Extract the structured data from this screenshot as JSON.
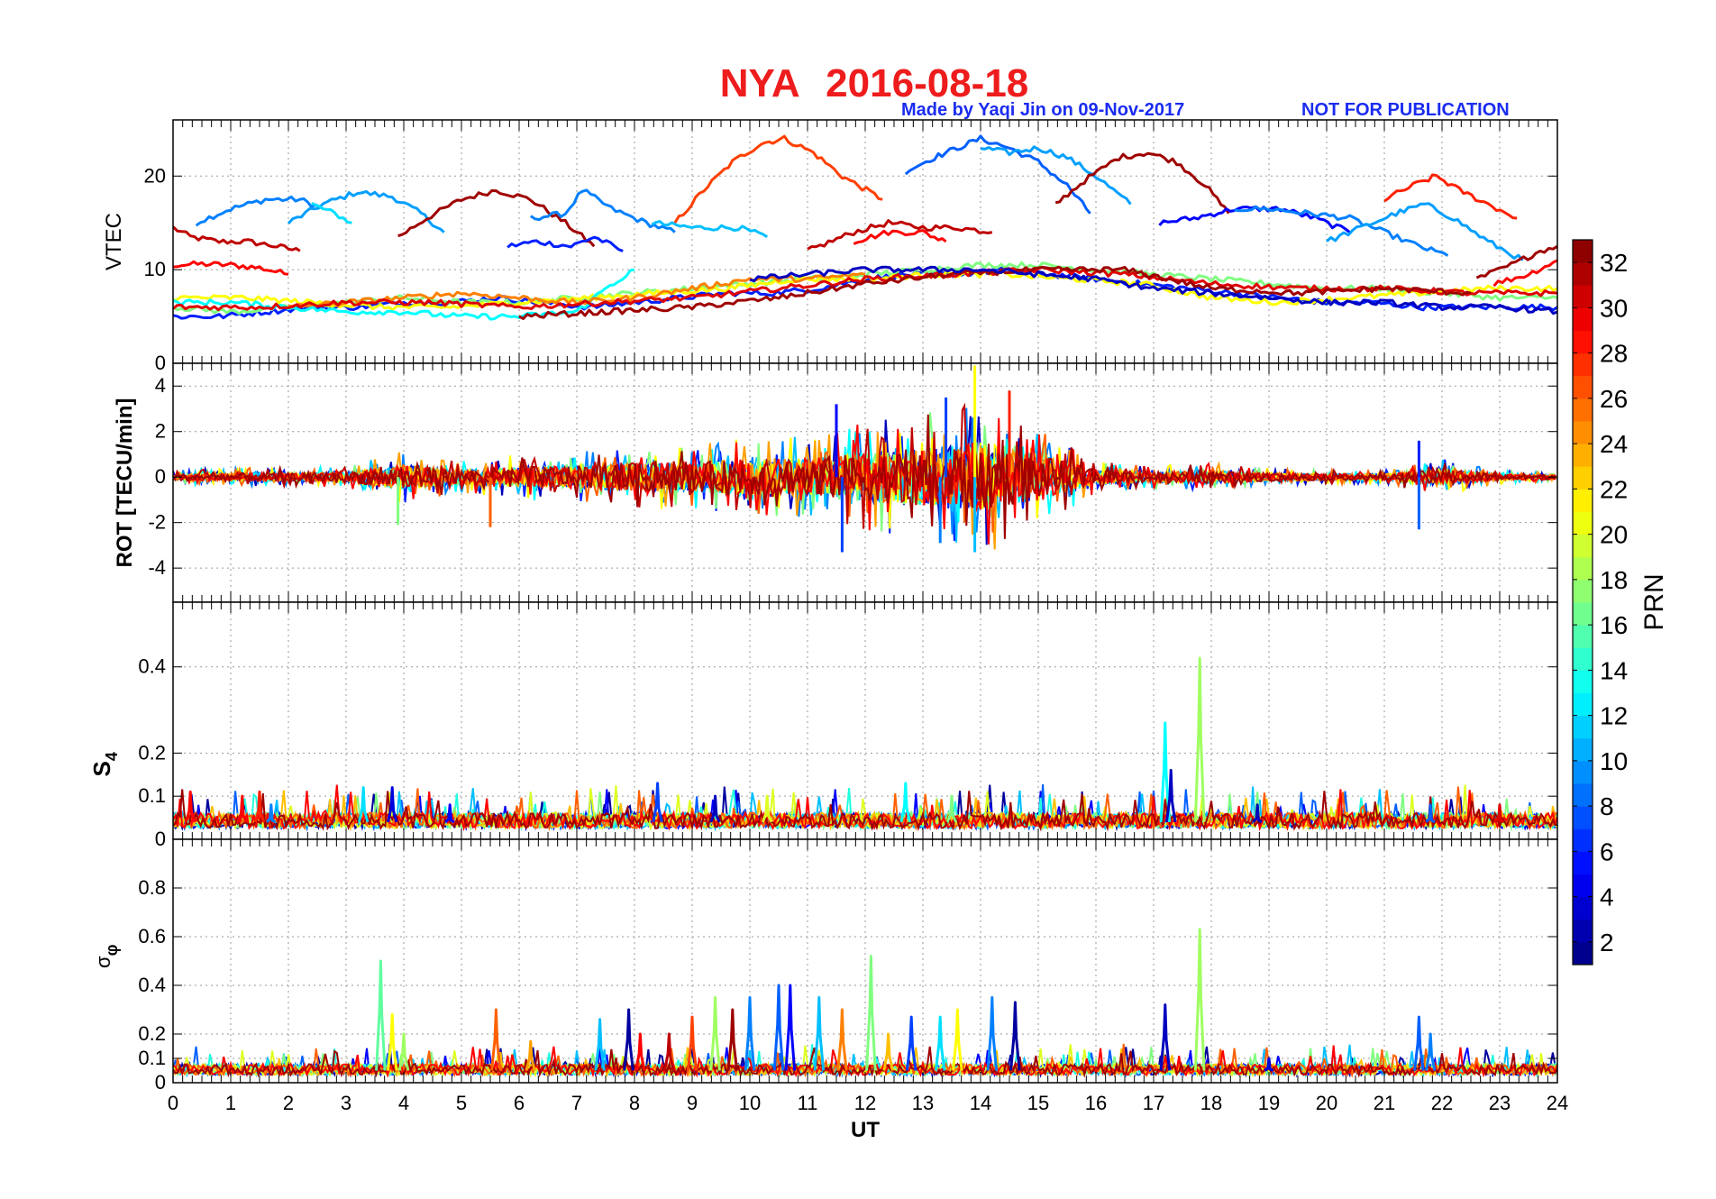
{
  "figure": {
    "title": "NYA   2016-08-18",
    "credit": "Made by Yaqi Jin on 09-Nov-2017",
    "notice": "NOT FOR PUBLICATION"
  },
  "chart_data": [
    {
      "type": "line",
      "panel": "vtec",
      "ylabel": "VTEC",
      "xlabel": "",
      "xlim": [
        0,
        24
      ],
      "ylim": [
        0,
        26
      ],
      "yticks": [
        0,
        10,
        20
      ],
      "grid": true,
      "series": [
        {
          "prn": 31,
          "x": [
            0,
            0.3,
            0.8,
            1.3,
            1.8,
            2.2
          ],
          "y": [
            14.5,
            13.5,
            13.0,
            13.0,
            12.5,
            12.0
          ]
        },
        {
          "prn": 29,
          "x": [
            0,
            0.5,
            1.0,
            1.5,
            2.0
          ],
          "y": [
            10.5,
            10.6,
            10.5,
            10.2,
            9.5
          ]
        },
        {
          "prn": 9,
          "x": [
            0.4,
            1.0,
            1.6,
            2.2,
            2.6
          ],
          "y": [
            15.0,
            16.5,
            17.5,
            17.5,
            16.5
          ]
        },
        {
          "prn": 10,
          "x": [
            2.0,
            2.6,
            3.2,
            3.8,
            4.3,
            4.7
          ],
          "y": [
            15.0,
            17.0,
            18.3,
            17.8,
            16.0,
            14.0
          ]
        },
        {
          "prn": 12,
          "x": [
            2.4,
            2.8,
            3.1
          ],
          "y": [
            17.0,
            16.0,
            15.0
          ]
        },
        {
          "prn": 32,
          "x": [
            3.9,
            4.4,
            5.0,
            5.6,
            6.2,
            6.8,
            7.3
          ],
          "y": [
            13.5,
            15.5,
            17.5,
            18.5,
            17.5,
            15.0,
            12.5
          ]
        },
        {
          "prn": 6,
          "x": [
            5.8,
            6.3,
            6.9,
            7.3,
            7.8
          ],
          "y": [
            12.5,
            13.0,
            12.5,
            13.5,
            12.0
          ]
        },
        {
          "prn": 9,
          "x": [
            6.2,
            6.8,
            7.1,
            7.6,
            8.2,
            8.7
          ],
          "y": [
            15.5,
            16.0,
            18.5,
            16.5,
            15.0,
            14.0
          ]
        },
        {
          "prn": 27,
          "x": [
            8.7,
            9.2,
            9.7,
            10.2,
            10.6,
            11.1,
            11.6,
            12.3
          ],
          "y": [
            15.0,
            18.5,
            21.5,
            23.5,
            24.0,
            22.5,
            20.0,
            17.5
          ]
        },
        {
          "prn": 11,
          "x": [
            8.3,
            9.0,
            9.8,
            10.3
          ],
          "y": [
            15.0,
            14.5,
            14.5,
            13.5
          ]
        },
        {
          "prn": 31,
          "x": [
            11.0,
            11.8,
            12.4,
            13.0,
            13.6,
            14.2
          ],
          "y": [
            12.0,
            14.0,
            15.0,
            14.5,
            14.5,
            14.0
          ]
        },
        {
          "prn": 29,
          "x": [
            11.8,
            12.4,
            13.0,
            13.4
          ],
          "y": [
            13.0,
            14.0,
            14.0,
            13.0
          ]
        },
        {
          "prn": 8,
          "x": [
            12.7,
            13.2,
            13.6,
            14.0,
            14.5,
            15.0,
            15.5,
            15.9
          ],
          "y": [
            20.5,
            22.0,
            23.0,
            24.0,
            23.0,
            21.5,
            19.0,
            16.0
          ]
        },
        {
          "prn": 10,
          "x": [
            14.0,
            14.5,
            15.0,
            15.5,
            16.0,
            16.6
          ],
          "y": [
            23.0,
            22.5,
            23.0,
            22.0,
            20.0,
            17.0
          ]
        },
        {
          "prn": 32,
          "x": [
            15.3,
            15.8,
            16.4,
            16.9,
            17.4,
            17.9,
            18.3
          ],
          "y": [
            17.0,
            19.5,
            22.0,
            22.5,
            21.5,
            19.0,
            16.0
          ]
        },
        {
          "prn": 5,
          "x": [
            17.1,
            17.7,
            18.4,
            19.2,
            19.8,
            20.4
          ],
          "y": [
            15.0,
            15.5,
            16.5,
            16.5,
            15.5,
            14.0
          ]
        },
        {
          "prn": 9,
          "x": [
            18.4,
            19.0,
            19.7,
            20.4,
            21.0,
            21.6,
            22.1
          ],
          "y": [
            16.5,
            16.5,
            16.0,
            15.5,
            14.0,
            12.5,
            11.5
          ]
        },
        {
          "prn": 28,
          "x": [
            21.0,
            21.5,
            21.9,
            22.3,
            22.8,
            23.3
          ],
          "y": [
            17.5,
            19.0,
            20.0,
            18.5,
            17.0,
            15.5
          ]
        },
        {
          "prn": 10,
          "x": [
            20.0,
            20.6,
            21.2,
            21.7,
            22.2,
            22.8,
            23.4
          ],
          "y": [
            13.0,
            14.5,
            16.0,
            17.0,
            15.5,
            13.0,
            11.0
          ]
        },
        {
          "prn": 32,
          "x": [
            22.6,
            23.2,
            23.7,
            24.0
          ],
          "y": [
            9.0,
            10.5,
            12.0,
            12.5
          ]
        },
        {
          "prn": 29,
          "x": [
            22.9,
            23.5,
            24.0
          ],
          "y": [
            8.5,
            9.5,
            11.0
          ]
        },
        {
          "prn": 6,
          "x": [
            0,
            0.8,
            1.6,
            2.4,
            3.2,
            4.0,
            4.8,
            5.6,
            6.4,
            7.2,
            8.0,
            8.8,
            9.6,
            10.4,
            11.2,
            12.0,
            12.8,
            13.6,
            14.4,
            15.2,
            16.0,
            16.8,
            17.6,
            18.4,
            19.2,
            20.0,
            20.8,
            21.6,
            22.4,
            23.2,
            24.0
          ],
          "y": [
            5,
            5,
            5.5,
            6,
            6,
            6.5,
            6.5,
            7,
            6.5,
            6,
            6.5,
            7,
            7.5,
            7.5,
            8,
            9,
            9.5,
            9.5,
            10,
            9.5,
            9,
            8.5,
            8,
            7.5,
            7,
            6.5,
            6.5,
            6,
            6,
            6,
            6
          ]
        },
        {
          "prn": 17,
          "x": [
            0,
            1.0,
            2.0,
            3.0,
            4.0,
            5.0,
            6.0,
            7.0,
            8.0,
            9.0,
            10.0,
            11.0,
            12.0,
            13.0,
            14.0,
            15.0,
            16.0,
            17.0,
            18.0,
            19.0,
            20.0,
            21.0,
            22.0,
            23.0,
            24.0
          ],
          "y": [
            6,
            5.5,
            6,
            6.5,
            7,
            6.5,
            6.5,
            7,
            7.5,
            8,
            8.5,
            9,
            9.5,
            10,
            10.5,
            10.5,
            10,
            9.5,
            9,
            8.5,
            8,
            8,
            7.5,
            7,
            7
          ]
        },
        {
          "prn": 21,
          "x": [
            0,
            1.2,
            2.4,
            3.6,
            4.8,
            6.0,
            7.2,
            8.4,
            9.6,
            10.8,
            12.0,
            13.2,
            14.4,
            15.6,
            16.8,
            18.0,
            19.2,
            20.4,
            21.6,
            22.8,
            24.0
          ],
          "y": [
            7,
            7,
            6.5,
            6,
            6,
            6.5,
            7,
            7.5,
            8,
            9,
            9,
            9.5,
            9.5,
            9,
            8.5,
            7,
            6.5,
            7,
            7.5,
            8,
            8
          ]
        },
        {
          "prn": 13,
          "x": [
            0,
            1.0,
            2.0,
            3.0,
            4.0,
            5.0,
            6.0,
            7.0,
            7.5,
            8.0
          ],
          "y": [
            6.5,
            6.5,
            6,
            5.5,
            5.5,
            5,
            5,
            5.5,
            8,
            10
          ]
        },
        {
          "prn": 25,
          "x": [
            2.0,
            3.0,
            4.0,
            5.0,
            6.0,
            7.0,
            8.0,
            9.0,
            10.0,
            11.0,
            12.0
          ],
          "y": [
            6,
            6.5,
            7,
            7.5,
            7,
            6.5,
            7,
            8,
            9,
            9,
            9.5
          ]
        },
        {
          "prn": 30,
          "x": [
            0,
            1.5,
            3.0,
            4.5,
            6.0,
            7.5,
            9.0,
            10.5,
            12.0,
            13.5,
            15.0,
            16.5,
            18.0,
            19.5,
            21.0,
            22.5,
            24.0
          ],
          "y": [
            6,
            6,
            6.5,
            6.5,
            6,
            6.5,
            7,
            8,
            9,
            9.5,
            10,
            9.5,
            8.5,
            8,
            8,
            7.5,
            7.5
          ]
        },
        {
          "prn": 32,
          "x": [
            6.0,
            7.5,
            9.0,
            10.5,
            12.0,
            13.5,
            15.0,
            16.5,
            18.0,
            19.5,
            21.0,
            22.5
          ],
          "y": [
            5,
            5.5,
            6,
            7,
            8.5,
            9.5,
            10,
            10,
            8,
            7.5,
            8,
            7.5
          ]
        },
        {
          "prn": 3,
          "x": [
            10.0,
            11.0,
            12.0,
            13.0,
            14.0,
            15.0,
            16.0,
            17.0,
            18.0,
            19.0,
            20.0,
            21.0,
            22.0,
            23.0,
            24.0
          ],
          "y": [
            9,
            9.5,
            10,
            10,
            10,
            9.5,
            9,
            8,
            7.5,
            7,
            6.5,
            6.5,
            6,
            6,
            5.5
          ]
        }
      ]
    },
    {
      "type": "line",
      "panel": "rot",
      "ylabel": "ROT [TECU/min]",
      "xlabel": "",
      "xlim": [
        0,
        24
      ],
      "ylim": [
        -5.5,
        5
      ],
      "yticks": [
        -4,
        -2,
        0,
        2,
        4
      ],
      "grid": true,
      "envelope_hours": [
        0,
        1,
        2,
        3,
        4,
        5,
        6,
        7,
        8,
        9,
        10,
        11,
        12,
        13,
        14,
        15,
        16,
        17,
        18,
        19,
        20,
        21,
        22,
        23,
        24
      ],
      "envelope_amplitude": [
        0.3,
        0.4,
        0.4,
        0.5,
        1.2,
        0.7,
        1.0,
        1.1,
        1.4,
        1.4,
        1.8,
        1.8,
        2.4,
        2.8,
        3.5,
        2.2,
        0.7,
        0.5,
        0.6,
        0.4,
        0.3,
        0.3,
        0.8,
        0.3,
        0.2
      ],
      "spikes": [
        {
          "x": 11.5,
          "y": 3.2,
          "prn": 5
        },
        {
          "x": 11.6,
          "y": -3.3,
          "prn": 7
        },
        {
          "x": 13.4,
          "y": 3.5,
          "prn": 7
        },
        {
          "x": 13.9,
          "y": 4.9,
          "prn": 21
        },
        {
          "x": 14.5,
          "y": 3.8,
          "prn": 28
        },
        {
          "x": 13.3,
          "y": -2.9,
          "prn": 9
        },
        {
          "x": 13.9,
          "y": -3.3,
          "prn": 11
        },
        {
          "x": 3.9,
          "y": -2.1,
          "prn": 17
        },
        {
          "x": 5.5,
          "y": -2.2,
          "prn": 26
        },
        {
          "x": 21.6,
          "y": -2.3,
          "prn": 8
        },
        {
          "x": 21.6,
          "y": 1.6,
          "prn": 6
        }
      ]
    },
    {
      "type": "line",
      "panel": "s4",
      "ylabel": "S4",
      "xlabel": "",
      "xlim": [
        0,
        24
      ],
      "ylim": [
        0,
        0.55
      ],
      "yticks": [
        0,
        0.1,
        0.2,
        0.4
      ],
      "grid": true,
      "baseline": 0.04,
      "spikes": [
        {
          "x": 0.3,
          "y": 0.11,
          "prn": 29
        },
        {
          "x": 1.2,
          "y": 0.1,
          "prn": 29
        },
        {
          "x": 1.5,
          "y": 0.11,
          "prn": 28
        },
        {
          "x": 1.7,
          "y": 0.08,
          "prn": 9
        },
        {
          "x": 3.3,
          "y": 0.12,
          "prn": 12
        },
        {
          "x": 3.8,
          "y": 0.12,
          "prn": 4
        },
        {
          "x": 4.8,
          "y": 0.08,
          "prn": 5
        },
        {
          "x": 8.4,
          "y": 0.13,
          "prn": 7
        },
        {
          "x": 9.4,
          "y": 0.1,
          "prn": 3
        },
        {
          "x": 10.3,
          "y": 0.1,
          "prn": 20
        },
        {
          "x": 12.7,
          "y": 0.13,
          "prn": 13
        },
        {
          "x": 13.5,
          "y": 0.1,
          "prn": 17
        },
        {
          "x": 17.2,
          "y": 0.27,
          "prn": 13
        },
        {
          "x": 17.3,
          "y": 0.16,
          "prn": 3
        },
        {
          "x": 17.8,
          "y": 0.42,
          "prn": 18
        },
        {
          "x": 18.8,
          "y": 0.08,
          "prn": 3
        },
        {
          "x": 21.8,
          "y": 0.08,
          "prn": 8
        },
        {
          "x": 23.0,
          "y": 0.08,
          "prn": 30
        }
      ]
    },
    {
      "type": "line",
      "panel": "sigma_phi",
      "ylabel": "σφ",
      "xlabel": "UT",
      "xlim": [
        0,
        24
      ],
      "ylim": [
        0,
        1.0
      ],
      "yticks": [
        0,
        0.1,
        0.2,
        0.4,
        0.6,
        0.8
      ],
      "xticks": [
        0,
        1,
        2,
        3,
        4,
        5,
        6,
        7,
        8,
        9,
        10,
        11,
        12,
        13,
        14,
        15,
        16,
        17,
        18,
        19,
        20,
        21,
        22,
        23,
        24
      ],
      "grid": true,
      "baseline": 0.05,
      "spikes": [
        {
          "x": 3.6,
          "y": 0.5,
          "prn": 16
        },
        {
          "x": 3.8,
          "y": 0.28,
          "prn": 21
        },
        {
          "x": 4.0,
          "y": 0.2,
          "prn": 18
        },
        {
          "x": 5.6,
          "y": 0.3,
          "prn": 26
        },
        {
          "x": 6.2,
          "y": 0.17,
          "prn": 24
        },
        {
          "x": 7.4,
          "y": 0.26,
          "prn": 11
        },
        {
          "x": 7.9,
          "y": 0.3,
          "prn": 2
        },
        {
          "x": 8.1,
          "y": 0.2,
          "prn": 29
        },
        {
          "x": 8.6,
          "y": 0.2,
          "prn": 31
        },
        {
          "x": 9.0,
          "y": 0.27,
          "prn": 27
        },
        {
          "x": 9.4,
          "y": 0.35,
          "prn": 18
        },
        {
          "x": 9.7,
          "y": 0.3,
          "prn": 32
        },
        {
          "x": 10.0,
          "y": 0.35,
          "prn": 9
        },
        {
          "x": 10.5,
          "y": 0.4,
          "prn": 8
        },
        {
          "x": 10.7,
          "y": 0.4,
          "prn": 5
        },
        {
          "x": 11.2,
          "y": 0.35,
          "prn": 11
        },
        {
          "x": 11.6,
          "y": 0.3,
          "prn": 25
        },
        {
          "x": 12.1,
          "y": 0.52,
          "prn": 17
        },
        {
          "x": 12.4,
          "y": 0.2,
          "prn": 23
        },
        {
          "x": 12.8,
          "y": 0.27,
          "prn": 7
        },
        {
          "x": 13.3,
          "y": 0.27,
          "prn": 12
        },
        {
          "x": 13.6,
          "y": 0.3,
          "prn": 21
        },
        {
          "x": 14.2,
          "y": 0.35,
          "prn": 9
        },
        {
          "x": 14.6,
          "y": 0.33,
          "prn": 2
        },
        {
          "x": 17.2,
          "y": 0.32,
          "prn": 3
        },
        {
          "x": 17.8,
          "y": 0.63,
          "prn": 18
        },
        {
          "x": 19.0,
          "y": 0.1,
          "prn": 4
        },
        {
          "x": 21.6,
          "y": 0.27,
          "prn": 8
        },
        {
          "x": 21.8,
          "y": 0.2,
          "prn": 9
        }
      ]
    }
  ],
  "colorbar": {
    "label": "PRN",
    "range": [
      1,
      33
    ],
    "ticks": [
      "2",
      "4",
      "6",
      "8",
      "10",
      "12",
      "14",
      "16",
      "18",
      "20",
      "22",
      "24",
      "26",
      "28",
      "30",
      "32"
    ]
  }
}
